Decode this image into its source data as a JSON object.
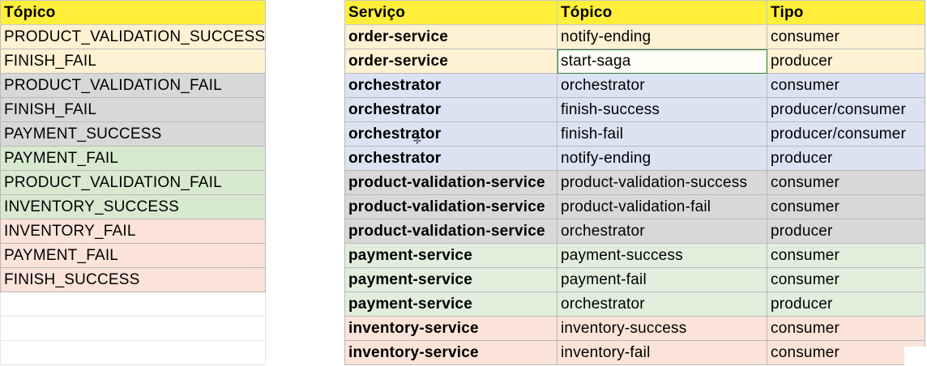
{
  "left_table": {
    "header": "Tópico",
    "rows": [
      {
        "topic": "PRODUCT_VALIDATION_SUCCESS",
        "group": "orange"
      },
      {
        "topic": "FINISH_FAIL",
        "group": "orange"
      },
      {
        "topic": "PRODUCT_VALIDATION_FAIL",
        "group": "gray"
      },
      {
        "topic": "FINISH_FAIL",
        "group": "gray"
      },
      {
        "topic": "PAYMENT_SUCCESS",
        "group": "gray"
      },
      {
        "topic": "PAYMENT_FAIL",
        "group": "green"
      },
      {
        "topic": "PRODUCT_VALIDATION_FAIL",
        "group": "green"
      },
      {
        "topic": "INVENTORY_SUCCESS",
        "group": "green"
      },
      {
        "topic": "INVENTORY_FAIL",
        "group": "red"
      },
      {
        "topic": "PAYMENT_FAIL",
        "group": "red"
      },
      {
        "topic": "FINISH_SUCCESS",
        "group": "red"
      }
    ]
  },
  "right_table": {
    "headers": {
      "service": "Serviço",
      "topic": "Tópico",
      "type": "Tipo"
    },
    "rows": [
      {
        "service": "order-service",
        "topic": "notify-ending",
        "type": "consumer",
        "group": "orange"
      },
      {
        "service": "order-service",
        "topic": "start-saga",
        "type": "producer",
        "group": "orange",
        "selected": true
      },
      {
        "service": "orchestrator",
        "topic": "orchestrator",
        "type": "consumer",
        "group": "blue"
      },
      {
        "service": "orchestrator",
        "topic": "finish-success",
        "type": "producer/consumer",
        "group": "blue"
      },
      {
        "service": "orchestrator",
        "topic": "finish-fail",
        "type": "producer/consumer",
        "group": "blue"
      },
      {
        "service": "orchestrator",
        "topic": "notify-ending",
        "type": "producer",
        "group": "blue"
      },
      {
        "service": "product-validation-service",
        "topic": "product-validation-success",
        "type": "consumer",
        "group": "gray"
      },
      {
        "service": "product-validation-service",
        "topic": "product-validation-fail",
        "type": "consumer",
        "group": "gray"
      },
      {
        "service": "product-validation-service",
        "topic": "orchestrator",
        "type": "producer",
        "group": "gray"
      },
      {
        "service": "payment-service",
        "topic": "payment-success",
        "type": "consumer",
        "group": "green2"
      },
      {
        "service": "payment-service",
        "topic": "payment-fail",
        "type": "consumer",
        "group": "green2"
      },
      {
        "service": "payment-service",
        "topic": "orchestrator",
        "type": "producer",
        "group": "green2"
      },
      {
        "service": "inventory-service",
        "topic": "inventory-success",
        "type": "consumer",
        "group": "red"
      },
      {
        "service": "inventory-service",
        "topic": "inventory-fail",
        "type": "consumer",
        "group": "red"
      }
    ]
  },
  "colors": {
    "header": "#ffef3b",
    "orange": "#fff1d3",
    "blue": "#dbe3f3",
    "gray": "#d8d8d8",
    "green": "#d7ead0",
    "red": "#fce3d9",
    "selection_border": "#2e7d32"
  },
  "cursor_icon": "crosshair-cursor-icon"
}
